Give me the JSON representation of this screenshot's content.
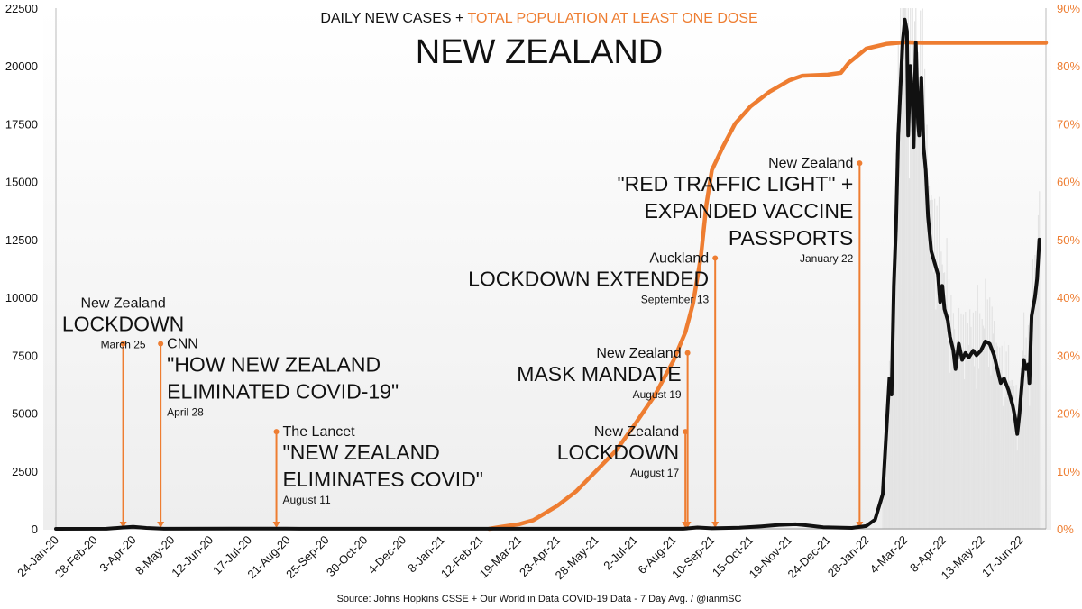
{
  "chart_data": {
    "type": "line",
    "subtitle_part1": "DAILY NEW CASES + ",
    "subtitle_part2": "TOTAL POPULATION AT LEAST ONE DOSE",
    "title": "NEW ZEALAND",
    "source": "Source: Johns Hopkins CSSE + Our World in Data COVID-19 Data - 7 Day Avg. / @ianmSC",
    "left_axis": {
      "ylim": [
        0,
        22500
      ],
      "ticks": [
        0,
        2500,
        5000,
        7500,
        10000,
        12500,
        15000,
        17500,
        20000,
        22500
      ],
      "tick_labels": [
        "0",
        "2500",
        "5000",
        "7500",
        "10000",
        "12500",
        "15000",
        "17500",
        "20000",
        "22500"
      ]
    },
    "right_axis": {
      "ylim": [
        0,
        90
      ],
      "ticks": [
        0,
        10,
        20,
        30,
        40,
        50,
        60,
        70,
        80,
        90
      ],
      "tick_labels": [
        "0%",
        "10%",
        "20%",
        "30%",
        "40%",
        "50%",
        "60%",
        "70%",
        "80%",
        "90%"
      ]
    },
    "x_axis": {
      "start": "2020-01-24",
      "end": "2022-07-10",
      "tick_labels": [
        "24-Jan-20",
        "28-Feb-20",
        "3-Apr-20",
        "8-May-20",
        "12-Jun-20",
        "17-Jul-20",
        "21-Aug-20",
        "25-Sep-20",
        "30-Oct-20",
        "4-Dec-20",
        "8-Jan-21",
        "12-Feb-21",
        "19-Mar-21",
        "23-Apr-21",
        "28-May-21",
        "2-Jul-21",
        "6-Aug-21",
        "10-Sep-21",
        "15-Oct-21",
        "19-Nov-21",
        "24-Dec-21",
        "28-Jan-22",
        "4-Mar-22",
        "8-Apr-22",
        "13-May-22",
        "17-Jun-22"
      ],
      "tick_dates": [
        "2020-01-24",
        "2020-02-28",
        "2020-04-03",
        "2020-05-08",
        "2020-06-12",
        "2020-07-17",
        "2020-08-21",
        "2020-09-25",
        "2020-10-30",
        "2020-12-04",
        "2021-01-08",
        "2021-02-12",
        "2021-03-19",
        "2021-04-23",
        "2021-05-28",
        "2021-07-02",
        "2021-08-06",
        "2021-09-10",
        "2021-10-15",
        "2021-11-19",
        "2021-12-24",
        "2022-01-28",
        "2022-03-04",
        "2022-04-08",
        "2022-05-13",
        "2022-06-17"
      ]
    },
    "colors": {
      "cases": "#111111",
      "vaccination": "#ee7d31",
      "daily_bars": "#e3e3e3"
    },
    "grid": false,
    "series": [
      {
        "name": "DAILY NEW CASES",
        "axis": "left",
        "points": [
          [
            "2020-01-24",
            0
          ],
          [
            "2020-03-10",
            5
          ],
          [
            "2020-03-25",
            60
          ],
          [
            "2020-04-03",
            85
          ],
          [
            "2020-04-15",
            40
          ],
          [
            "2020-05-01",
            5
          ],
          [
            "2020-08-20",
            10
          ],
          [
            "2020-09-01",
            5
          ],
          [
            "2021-08-15",
            5
          ],
          [
            "2021-08-28",
            60
          ],
          [
            "2021-09-10",
            25
          ],
          [
            "2021-10-05",
            50
          ],
          [
            "2021-10-25",
            110
          ],
          [
            "2021-11-10",
            170
          ],
          [
            "2021-11-25",
            200
          ],
          [
            "2021-12-05",
            150
          ],
          [
            "2021-12-20",
            70
          ],
          [
            "2022-01-15",
            40
          ],
          [
            "2022-01-28",
            120
          ],
          [
            "2022-02-05",
            400
          ],
          [
            "2022-02-12",
            1500
          ],
          [
            "2022-02-18",
            6500
          ],
          [
            "2022-02-20",
            5800
          ],
          [
            "2022-02-22",
            10500
          ],
          [
            "2022-02-24",
            13000
          ],
          [
            "2022-02-26",
            17000
          ],
          [
            "2022-02-28",
            19000
          ],
          [
            "2022-03-02",
            21000
          ],
          [
            "2022-03-04",
            22000
          ],
          [
            "2022-03-06",
            21500
          ],
          [
            "2022-03-07",
            17000
          ],
          [
            "2022-03-09",
            20000
          ],
          [
            "2022-03-11",
            18500
          ],
          [
            "2022-03-12",
            16500
          ],
          [
            "2022-03-14",
            21000
          ],
          [
            "2022-03-16",
            17500
          ],
          [
            "2022-03-17",
            17000
          ],
          [
            "2022-03-19",
            19500
          ],
          [
            "2022-03-21",
            16500
          ],
          [
            "2022-03-23",
            15500
          ],
          [
            "2022-03-25",
            13500
          ],
          [
            "2022-03-28",
            12000
          ],
          [
            "2022-03-31",
            11500
          ],
          [
            "2022-04-03",
            11000
          ],
          [
            "2022-04-05",
            9800
          ],
          [
            "2022-04-07",
            10500
          ],
          [
            "2022-04-09",
            9500
          ],
          [
            "2022-04-12",
            9000
          ],
          [
            "2022-04-14",
            8300
          ],
          [
            "2022-04-17",
            7700
          ],
          [
            "2022-04-19",
            6900
          ],
          [
            "2022-04-22",
            8000
          ],
          [
            "2022-04-25",
            7300
          ],
          [
            "2022-04-28",
            7600
          ],
          [
            "2022-05-01",
            7400
          ],
          [
            "2022-05-05",
            7700
          ],
          [
            "2022-05-08",
            7500
          ],
          [
            "2022-05-12",
            7700
          ],
          [
            "2022-05-16",
            8100
          ],
          [
            "2022-05-20",
            8000
          ],
          [
            "2022-05-24",
            7500
          ],
          [
            "2022-05-28",
            6700
          ],
          [
            "2022-05-30",
            6300
          ],
          [
            "2022-06-02",
            6500
          ],
          [
            "2022-06-06",
            6000
          ],
          [
            "2022-06-10",
            5300
          ],
          [
            "2022-06-12",
            4800
          ],
          [
            "2022-06-14",
            4100
          ],
          [
            "2022-06-16",
            5000
          ],
          [
            "2022-06-20",
            7300
          ],
          [
            "2022-06-22",
            6900
          ],
          [
            "2022-06-24",
            7100
          ],
          [
            "2022-06-25",
            6300
          ],
          [
            "2022-06-27",
            9200
          ],
          [
            "2022-06-30",
            10000
          ],
          [
            "2022-07-02",
            10800
          ],
          [
            "2022-07-04",
            12500
          ]
        ]
      },
      {
        "name": "TOTAL POPULATION AT LEAST ONE DOSE",
        "axis": "right",
        "points": [
          [
            "2021-02-20",
            0
          ],
          [
            "2021-03-01",
            0.3
          ],
          [
            "2021-03-19",
            0.8
          ],
          [
            "2021-04-01",
            1.5
          ],
          [
            "2021-04-23",
            4
          ],
          [
            "2021-05-10",
            6.5
          ],
          [
            "2021-05-28",
            10
          ],
          [
            "2021-06-15",
            13.5
          ],
          [
            "2021-07-02",
            18
          ],
          [
            "2021-07-20",
            23
          ],
          [
            "2021-08-06",
            29
          ],
          [
            "2021-08-17",
            34
          ],
          [
            "2021-08-24",
            39
          ],
          [
            "2021-08-31",
            47
          ],
          [
            "2021-09-05",
            56
          ],
          [
            "2021-09-10",
            62
          ],
          [
            "2021-09-20",
            66
          ],
          [
            "2021-10-01",
            70
          ],
          [
            "2021-10-15",
            73
          ],
          [
            "2021-11-01",
            75.5
          ],
          [
            "2021-11-19",
            77.5
          ],
          [
            "2021-12-01",
            78.3
          ],
          [
            "2021-12-24",
            78.5
          ],
          [
            "2022-01-05",
            78.8
          ],
          [
            "2022-01-12",
            80.5
          ],
          [
            "2022-01-28",
            83
          ],
          [
            "2022-02-15",
            83.8
          ],
          [
            "2022-03-04",
            84.1
          ],
          [
            "2022-03-20",
            84
          ],
          [
            "2022-07-10",
            84
          ]
        ]
      }
    ],
    "annotations": [
      {
        "date": "2020-03-25",
        "top_value": 8000,
        "small": "New Zealand",
        "big": [
          "LOCKDOWN"
        ],
        "date_label": "March 25",
        "align": "center"
      },
      {
        "date": "2020-04-28",
        "top_value": 8000,
        "small": "CNN",
        "big": [
          "\"HOW NEW ZEALAND",
          "ELIMINATED COVID-19\""
        ],
        "date_label": "April 28",
        "align": "left"
      },
      {
        "date": "2020-08-11",
        "top_value": 4200,
        "small": "The Lancet",
        "big": [
          "\"NEW ZEALAND",
          "ELIMINATES COVID\""
        ],
        "date_label": "August 11",
        "align": "left"
      },
      {
        "date": "2021-08-17",
        "top_value": 4200,
        "small": "New Zealand",
        "big": [
          "LOCKDOWN"
        ],
        "date_label": "August 17",
        "align": "right"
      },
      {
        "date": "2021-08-19",
        "top_value": 7600,
        "small": "New Zealand",
        "big": [
          "MASK MANDATE"
        ],
        "date_label": "August 19",
        "align": "right"
      },
      {
        "date": "2021-09-13",
        "top_value": 11700,
        "small": "Auckland",
        "big": [
          "LOCKDOWN EXTENDED"
        ],
        "date_label": "September 13",
        "align": "right"
      },
      {
        "date": "2022-01-22",
        "top_value": 15800,
        "small": "New Zealand",
        "big": [
          "\"RED TRAFFIC LIGHT\" +",
          "EXPANDED VACCINE",
          "PASSPORTS"
        ],
        "date_label": "January 22",
        "align": "right"
      }
    ]
  }
}
